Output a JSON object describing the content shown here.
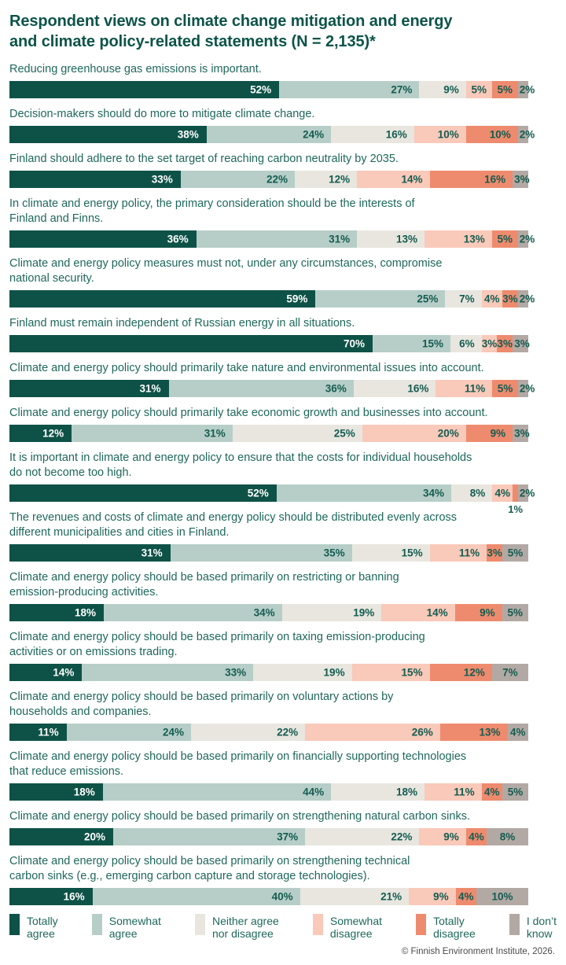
{
  "header": {
    "title": "Respondent views on climate change mitigation and energy\nand climate policy-related statements (N = 2,135)*"
  },
  "colors": {
    "totally_agree": "#0E5247",
    "somewhat_agree": "#B7CEC8",
    "neither_agree_nor_disagree": "#E8E6DF",
    "somewhat_disagree": "#F9C9BA",
    "totally_disagree": "#EE8B6E",
    "i_dont_know": "#B3A9A4",
    "title_text": "#0C5448",
    "statement_text": "#1E685B",
    "label_text": "#135C50",
    "footer_text": "#4A4A4A"
  },
  "legend": [
    {
      "label": "Totally\nagree",
      "color": "#0E5247"
    },
    {
      "label": "Somewhat\nagree",
      "color": "#B7CEC8"
    },
    {
      "label": "Neither agree\nnor disagree",
      "color": "#E8E6DF"
    },
    {
      "label": "Somewhat\ndisagree",
      "color": "#F9C9BA"
    },
    {
      "label": "Totally\ndisagree",
      "color": "#EE8B6E"
    },
    {
      "label": "I don’t\nknow",
      "color": "#B3A9A4"
    }
  ],
  "footer": {
    "credit": "© Finnish Environment Institute, 2026."
  },
  "chart_data": {
    "type": "bar",
    "stacked": true,
    "orientation": "horizontal",
    "unit": "%",
    "title": "Respondent views on climate change mitigation and energy and climate policy-related statements (N = 2,135)*",
    "series_names": [
      "Totally agree",
      "Somewhat agree",
      "Neither agree nor disagree",
      "Somewhat disagree",
      "Totally disagree",
      "I don't know"
    ],
    "series_colors": [
      "#0E5247",
      "#B7CEC8",
      "#E8E6DF",
      "#F9C9BA",
      "#EE8B6E",
      "#B3A9A4"
    ],
    "legend_position": "bottom",
    "rows": [
      {
        "statement": "Reducing greenhouse gas emissions is important.",
        "values": [
          52,
          27,
          9,
          5,
          5,
          2
        ]
      },
      {
        "statement": "Decision-makers should do more to mitigate climate change.",
        "values": [
          38,
          24,
          16,
          10,
          10,
          2
        ]
      },
      {
        "statement": "Finland should adhere to the set target of reaching carbon neutrality by 2035.",
        "values": [
          33,
          22,
          12,
          14,
          16,
          3
        ]
      },
      {
        "statement": "In climate and energy policy, the primary consideration should be the interests of\nFinland and Finns.",
        "values": [
          36,
          31,
          13,
          13,
          5,
          2
        ]
      },
      {
        "statement": "Climate and energy policy measures must not, under any circumstances, compromise\nnational security.",
        "values": [
          59,
          25,
          7,
          4,
          3,
          2
        ]
      },
      {
        "statement": "Finland must remain independent of Russian energy in all situations.",
        "values": [
          70,
          15,
          6,
          3,
          3,
          3
        ]
      },
      {
        "statement": "Climate and energy policy should primarily take nature and environmental issues into account.",
        "values": [
          31,
          36,
          16,
          11,
          5,
          2
        ]
      },
      {
        "statement": "Climate and energy policy should primarily take economic growth and businesses into account.",
        "values": [
          12,
          31,
          25,
          20,
          9,
          3
        ]
      },
      {
        "statement": "It is important in climate and energy policy to ensure that the costs for individual households\ndo not become too high.",
        "values": [
          52,
          34,
          8,
          4,
          1,
          2
        ],
        "below_label_index": 4
      },
      {
        "statement": "The revenues and costs of climate and energy policy should be distributed evenly across\ndifferent municipalities and cities in Finland.",
        "values": [
          31,
          35,
          15,
          11,
          3,
          5
        ]
      },
      {
        "statement": "Climate and energy policy should be based primarily on restricting or banning\nemission-producing activities.",
        "values": [
          18,
          34,
          19,
          14,
          9,
          5
        ]
      },
      {
        "statement": "Climate and energy policy should be based primarily on taxing emission-producing\nactivities or on emissions trading.",
        "values": [
          14,
          33,
          19,
          15,
          12,
          7
        ]
      },
      {
        "statement": "Climate and energy policy should be based primarily on voluntary actions by\nhouseholds and companies.",
        "values": [
          11,
          24,
          22,
          26,
          13,
          4
        ]
      },
      {
        "statement": "Climate and energy policy should be based primarily on financially supporting technologies\nthat reduce emissions.",
        "values": [
          18,
          44,
          18,
          11,
          4,
          5
        ]
      },
      {
        "statement": "Climate and energy policy should be based primarily on strengthening natural carbon sinks.",
        "values": [
          20,
          37,
          22,
          9,
          4,
          8
        ]
      },
      {
        "statement": "Climate and energy policy should be based primarily on strengthening technical\ncarbon sinks (e.g., emerging carbon capture and storage technologies).",
        "values": [
          16,
          40,
          21,
          9,
          4,
          10
        ]
      }
    ]
  }
}
